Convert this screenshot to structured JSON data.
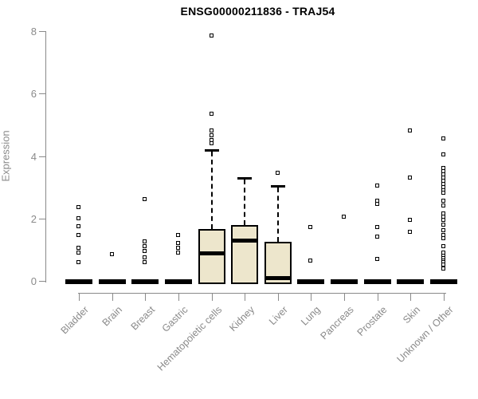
{
  "colors": {
    "box_fill": "#EDE6CC",
    "box_stroke": "#000000",
    "axis": "#8A8A8A",
    "title_text": "#000000",
    "background": "#FFFFFF"
  },
  "chart_data": {
    "type": "boxplot",
    "title": "ENSG00000211836 - TRAJ54",
    "ylabel": "Expression",
    "xlabel": "",
    "ylim": [
      0,
      8
    ],
    "yticks": [
      0,
      2,
      4,
      6,
      8
    ],
    "grid": false,
    "legend": false,
    "categories": [
      "Bladder",
      "Brain",
      "Breast",
      "Gastric",
      "Hematopoietic cells",
      "Kidney",
      "Liver",
      "Lung",
      "Pancreas",
      "Prostate",
      "Skin",
      "Unknown / Other"
    ],
    "boxes": [
      {
        "category": "Bladder",
        "q1": 0,
        "median": 0,
        "q3": 0,
        "whisker_low": 0,
        "whisker_high": 0,
        "outliers": [
          2.35,
          2.0,
          1.75,
          1.45,
          1.05,
          0.9,
          0.6
        ]
      },
      {
        "category": "Brain",
        "q1": 0,
        "median": 0,
        "q3": 0,
        "whisker_low": 0,
        "whisker_high": 0,
        "outliers": [
          0.85
        ]
      },
      {
        "category": "Breast",
        "q1": 0,
        "median": 0,
        "q3": 0,
        "whisker_low": 0,
        "whisker_high": 0,
        "outliers": [
          2.6,
          1.25,
          1.1,
          0.95,
          0.75,
          0.6
        ]
      },
      {
        "category": "Gastric",
        "q1": 0,
        "median": 0,
        "q3": 0,
        "whisker_low": 0,
        "whisker_high": 0,
        "outliers": [
          1.45,
          1.2,
          1.05,
          0.9
        ]
      },
      {
        "category": "Hematopoietic cells",
        "q1": 0,
        "median": 0.9,
        "q3": 1.65,
        "whisker_low": 0,
        "whisker_high": 4.2,
        "outliers": [
          7.85,
          5.35,
          4.8,
          4.65,
          4.5,
          4.4
        ]
      },
      {
        "category": "Kidney",
        "q1": 0,
        "median": 1.3,
        "q3": 1.8,
        "whisker_low": 0,
        "whisker_high": 3.3,
        "outliers": []
      },
      {
        "category": "Liver",
        "q1": 0,
        "median": 0.1,
        "q3": 1.25,
        "whisker_low": 0,
        "whisker_high": 3.05,
        "outliers": [
          3.45
        ]
      },
      {
        "category": "Lung",
        "q1": 0,
        "median": 0,
        "q3": 0,
        "whisker_low": 0,
        "whisker_high": 0,
        "outliers": [
          1.7,
          0.65
        ]
      },
      {
        "category": "Pancreas",
        "q1": 0,
        "median": 0,
        "q3": 0,
        "whisker_low": 0,
        "whisker_high": 0,
        "outliers": [
          2.05
        ]
      },
      {
        "category": "Prostate",
        "q1": 0,
        "median": 0,
        "q3": 0,
        "whisker_low": 0,
        "whisker_high": 0,
        "outliers": [
          3.05,
          2.55,
          2.45,
          1.7,
          1.4,
          0.7
        ]
      },
      {
        "category": "Skin",
        "q1": 0,
        "median": 0,
        "q3": 0,
        "whisker_low": 0,
        "whisker_high": 0,
        "outliers": [
          4.8,
          3.3,
          1.95,
          1.55
        ]
      },
      {
        "category": "Unknown / Other",
        "q1": 0,
        "median": 0,
        "q3": 0,
        "whisker_low": 0,
        "whisker_high": 0,
        "outliers": [
          4.55,
          4.05,
          3.6,
          3.5,
          3.4,
          3.3,
          3.2,
          3.1,
          3.0,
          2.9,
          2.8,
          2.55,
          2.4,
          2.15,
          2.05,
          1.95,
          1.8,
          1.6,
          1.45,
          1.35,
          1.1,
          0.9,
          0.8,
          0.72,
          0.65,
          0.58,
          0.5,
          0.38
        ]
      }
    ]
  }
}
